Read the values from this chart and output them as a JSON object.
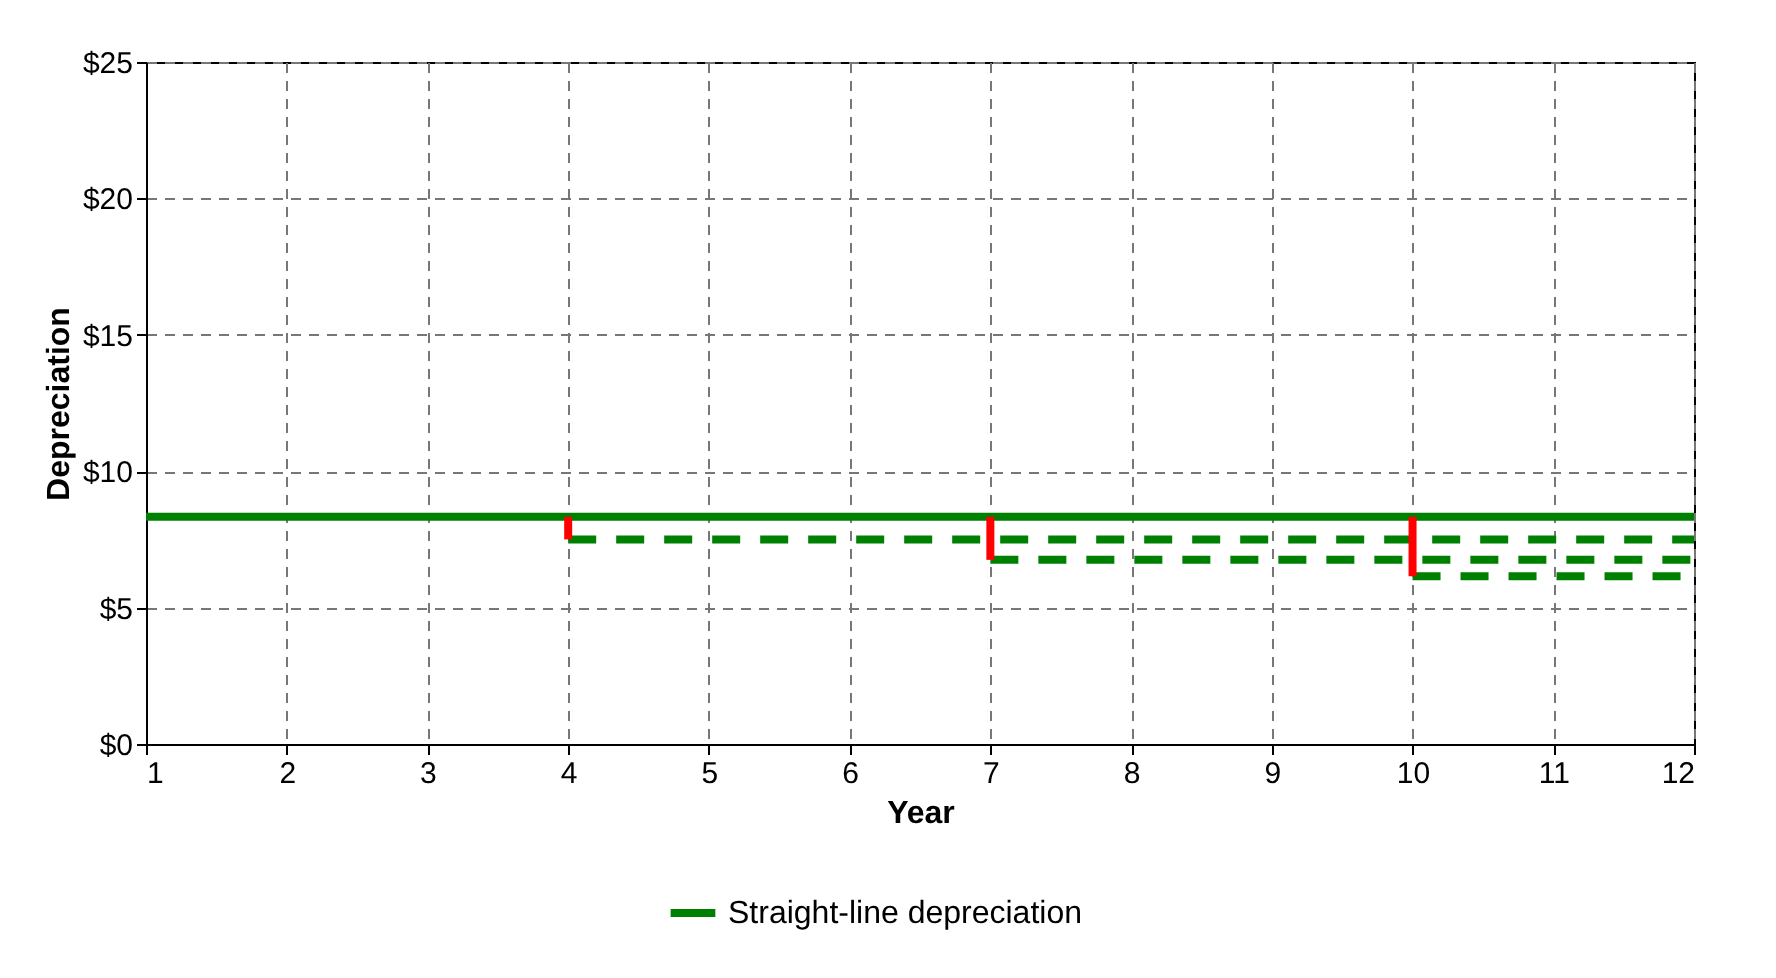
{
  "chart_data": {
    "type": "line",
    "xlabel": "Year",
    "ylabel": "Depreciation",
    "xlim": [
      1,
      12
    ],
    "xticks": [
      1,
      2,
      3,
      4,
      5,
      6,
      7,
      8,
      9,
      10,
      11,
      12
    ],
    "ylim": [
      0,
      25
    ],
    "yticks": [
      {
        "value": 0,
        "label": "$0"
      },
      {
        "value": 5,
        "label": "$5"
      },
      {
        "value": 10,
        "label": "$10"
      },
      {
        "value": 15,
        "label": "$15"
      },
      {
        "value": 20,
        "label": "$20"
      },
      {
        "value": 25,
        "label": "$25"
      }
    ],
    "grid": true,
    "legend": "bottom",
    "marker": "none",
    "series": [
      {
        "name": "Straight-line depreciation",
        "color": "#008000",
        "line_style": "solid",
        "x": [
          1,
          12
        ],
        "values": [
          8.33,
          8.33
        ]
      },
      {
        "color": "#008000",
        "line_style": "dashed",
        "x": [
          4,
          12
        ],
        "values": [
          7.5,
          7.5
        ]
      },
      {
        "color": "#008000",
        "line_style": "dashed",
        "x": [
          7,
          12
        ],
        "values": [
          6.75,
          6.75
        ]
      },
      {
        "color": "#008000",
        "line_style": "dashed",
        "x": [
          10,
          12
        ],
        "values": [
          6.15,
          6.15
        ]
      },
      {
        "color": "#ff0000",
        "line_style": "solid",
        "x": [
          4,
          4
        ],
        "values": [
          8.33,
          7.5
        ]
      },
      {
        "color": "#ff0000",
        "line_style": "solid",
        "x": [
          7,
          7
        ],
        "values": [
          8.33,
          6.75
        ]
      },
      {
        "color": "#ff0000",
        "line_style": "solid",
        "x": [
          10,
          10
        ],
        "values": [
          8.33,
          6.15
        ]
      }
    ]
  }
}
